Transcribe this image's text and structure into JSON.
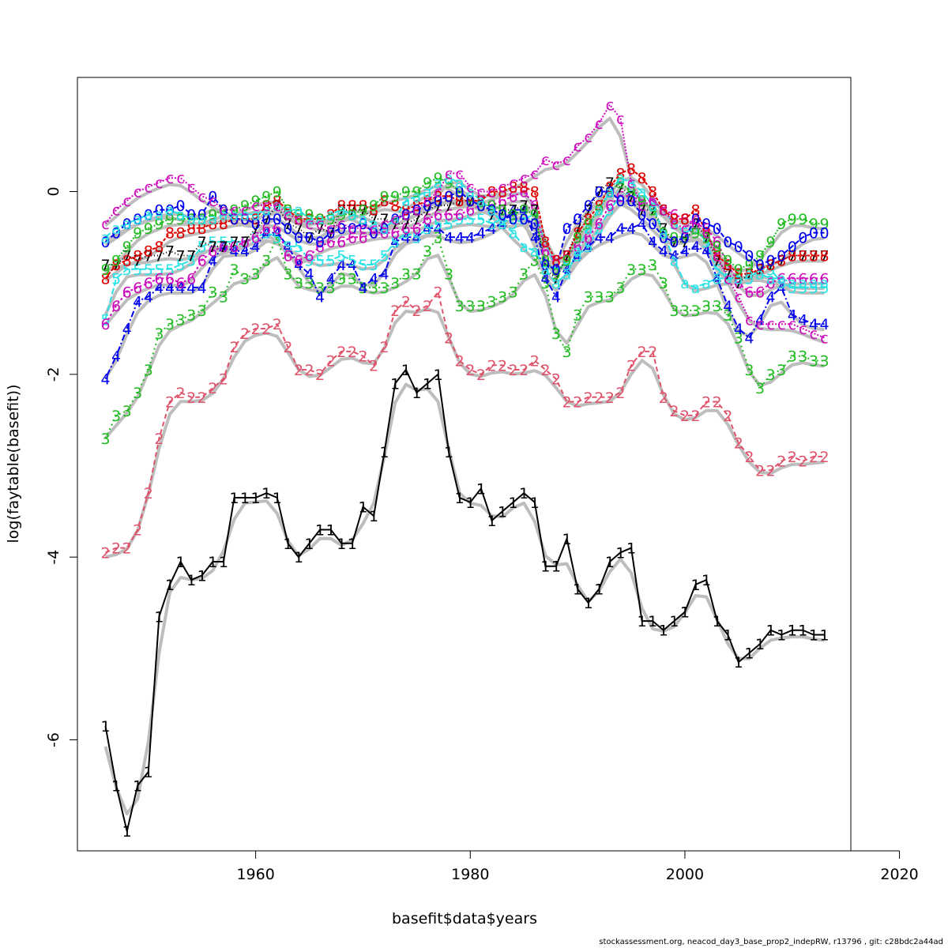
{
  "footer": "stockassessment.org, neacod_day3_base_prop2_indepRW, r13796 , git: c28bdc2a44ad",
  "chart_data": {
    "type": "line",
    "title": "",
    "xlabel": "basefit$data$years",
    "ylabel": "log(faytable(basefit))",
    "xlim": [
      1946,
      2020
    ],
    "ylim": [
      -7.15,
      1.25
    ],
    "xticks": [
      1960,
      1980,
      2000,
      2020
    ],
    "yticks": [
      -6,
      -4,
      -2,
      0
    ],
    "grid": false,
    "legend": "none",
    "series": [
      {
        "label": "1",
        "color": "#000000",
        "dash": "",
        "values": [
          -5.85,
          -6.5,
          -7.0,
          -6.5,
          -6.35,
          -4.65,
          -4.3,
          -4.05,
          -4.25,
          -4.2,
          -4.05,
          -4.05,
          -3.35,
          -3.35,
          -3.35,
          -3.3,
          -3.35,
          -3.85,
          -4.0,
          -3.85,
          -3.7,
          -3.7,
          -3.85,
          -3.85,
          -3.45,
          -3.55,
          -2.85,
          -2.1,
          -1.95,
          -2.2,
          -2.1,
          -2.0,
          -2.85,
          -3.35,
          -3.4,
          -3.25,
          -3.6,
          -3.5,
          -3.4,
          -3.3,
          -3.4,
          -4.1,
          -4.1,
          -3.8,
          -4.35,
          -4.5,
          -4.35,
          -4.05,
          -3.95,
          -3.9,
          -4.7,
          -4.7,
          -4.8,
          -4.7,
          -4.6,
          -4.3,
          -4.25,
          -4.7,
          -4.85,
          -5.15,
          -5.05,
          -4.95,
          -4.8,
          -4.85,
          -4.8,
          -4.8,
          -4.85,
          -4.85
        ]
      },
      {
        "label": "2",
        "color": "#df536b",
        "dash": "6,4",
        "values": [
          -3.95,
          -3.9,
          -3.9,
          -3.7,
          -3.3,
          -2.7,
          -2.3,
          -2.2,
          -2.25,
          -2.25,
          -2.15,
          -2.05,
          -1.7,
          -1.55,
          -1.5,
          -1.5,
          -1.45,
          -1.7,
          -1.95,
          -1.95,
          -2.0,
          -1.85,
          -1.75,
          -1.75,
          -1.8,
          -1.9,
          -1.7,
          -1.3,
          -1.2,
          -1.3,
          -1.25,
          -1.1,
          -1.6,
          -1.85,
          -1.95,
          -2.0,
          -1.9,
          -1.9,
          -1.95,
          -1.95,
          -1.85,
          -1.95,
          -2.05,
          -2.3,
          -2.3,
          -2.25,
          -2.25,
          -2.25,
          -2.2,
          -1.9,
          -1.75,
          -1.75,
          -2.25,
          -2.4,
          -2.45,
          -2.45,
          -2.3,
          -2.3,
          -2.45,
          -2.75,
          -2.9,
          -3.05,
          -3.05,
          -2.95,
          -2.9,
          -2.95,
          -2.9,
          -2.9
        ]
      },
      {
        "label": "3",
        "color": "#22bb22",
        "dash": "2,4",
        "values": [
          -2.7,
          -2.45,
          -2.4,
          -2.2,
          -1.95,
          -1.55,
          -1.45,
          -1.4,
          -1.35,
          -1.3,
          -1.1,
          -1.15,
          -0.85,
          -0.95,
          -0.9,
          -0.75,
          -0.5,
          -0.9,
          -1.0,
          -1.0,
          -1.05,
          -1.05,
          -0.95,
          -0.95,
          -1.05,
          -1.05,
          -1.05,
          -1.0,
          -0.9,
          -0.9,
          -0.65,
          -0.5,
          -0.9,
          -1.25,
          -1.25,
          -1.25,
          -1.2,
          -1.15,
          -1.1,
          -0.9,
          -0.75,
          -1.0,
          -1.55,
          -1.75,
          -1.35,
          -1.15,
          -1.15,
          -1.15,
          -1.05,
          -0.85,
          -0.85,
          -0.8,
          -1.0,
          -1.3,
          -1.3,
          -1.3,
          -1.25,
          -1.25,
          -1.35,
          -1.6,
          -1.95,
          -2.15,
          -2.0,
          -1.95,
          -1.8,
          -1.8,
          -1.85,
          -1.85
        ]
      },
      {
        "label": "4",
        "color": "#0000ee",
        "dash": "2,3,8,3",
        "values": [
          -2.05,
          -1.8,
          -1.5,
          -1.2,
          -1.15,
          -1.05,
          -1.05,
          -1.05,
          -1.05,
          -1.05,
          -0.75,
          -0.6,
          -0.65,
          -0.65,
          -0.6,
          -0.45,
          -0.45,
          -0.6,
          -0.8,
          -0.9,
          -1.15,
          -0.95,
          -0.8,
          -0.8,
          -1.05,
          -0.95,
          -0.9,
          -0.55,
          -0.5,
          -0.5,
          -0.4,
          -0.4,
          -0.5,
          -0.5,
          -0.5,
          -0.45,
          -0.4,
          -0.35,
          -0.2,
          -0.2,
          -0.5,
          -0.95,
          -1.15,
          -0.85,
          -0.7,
          -0.6,
          -0.5,
          -0.5,
          -0.4,
          -0.4,
          -0.35,
          -0.55,
          -0.65,
          -0.7,
          -0.65,
          -0.6,
          -0.65,
          -0.95,
          -1.25,
          -1.5,
          -1.6,
          -1.4,
          -1.15,
          -1.05,
          -1.35,
          -1.4,
          -1.45,
          -1.45
        ]
      },
      {
        "label": "5",
        "color": "#28e2e5",
        "dash": "8,3",
        "values": [
          -1.4,
          -0.95,
          -0.85,
          -0.85,
          -0.85,
          -0.85,
          -0.85,
          -0.8,
          -0.75,
          -0.6,
          -0.55,
          -0.55,
          -0.55,
          -0.55,
          -0.5,
          -0.45,
          -0.5,
          -0.6,
          -0.6,
          -0.75,
          -0.75,
          -0.75,
          -0.7,
          -0.75,
          -0.8,
          -0.8,
          -0.7,
          -0.55,
          -0.45,
          -0.5,
          -0.4,
          -0.35,
          -0.35,
          -0.3,
          -0.3,
          -0.3,
          -0.35,
          -0.3,
          -0.35,
          -0.3,
          -0.25,
          -0.55,
          -0.85,
          -0.8,
          -0.7,
          -0.6,
          -0.4,
          -0.2,
          -0.05,
          0.0,
          -0.1,
          -0.1,
          -0.2,
          -0.35,
          -0.45,
          -0.4,
          -0.55,
          -0.85,
          -0.95,
          -0.95,
          -0.95,
          -0.85,
          -0.85,
          -1.0,
          -1.05,
          -1.05,
          -1.05,
          -1.05
        ]
      },
      {
        "label": "6",
        "color": "#cd0bbc",
        "dash": "3,3",
        "values": [
          -1.45,
          -1.25,
          -1.1,
          -1.05,
          -1.0,
          -0.95,
          -0.95,
          -1.0,
          -0.95,
          -0.75,
          -0.65,
          -0.6,
          -0.6,
          -0.55,
          -0.5,
          -0.4,
          -0.4,
          -0.7,
          -0.75,
          -0.7,
          -0.6,
          -0.55,
          -0.55,
          -0.5,
          -0.5,
          -0.45,
          -0.45,
          -0.45,
          -0.4,
          -0.4,
          -0.3,
          -0.25,
          -0.25,
          -0.25,
          -0.2,
          -0.15,
          -0.15,
          -0.1,
          -0.05,
          0.0,
          -0.15,
          -0.65,
          -0.75,
          -0.7,
          -0.6,
          -0.5,
          -0.35,
          -0.15,
          -0.05,
          -0.05,
          -0.1,
          -0.1,
          -0.2,
          -0.25,
          -0.3,
          -0.35,
          -0.4,
          -0.55,
          -0.8,
          -1.0,
          -1.1,
          -1.1,
          -1.0,
          -0.95,
          -0.95,
          -0.95,
          -0.95,
          -0.95
        ]
      },
      {
        "label": "7",
        "color": "#000000",
        "dash": "1,3",
        "values": [
          -0.8,
          -0.8,
          -0.7,
          -0.75,
          -0.7,
          -0.7,
          -0.65,
          -0.7,
          -0.7,
          -0.55,
          -0.6,
          -0.6,
          -0.55,
          -0.55,
          -0.4,
          -0.3,
          -0.15,
          -0.35,
          -0.4,
          -0.5,
          -0.4,
          -0.45,
          -0.2,
          -0.2,
          -0.2,
          -0.3,
          -0.3,
          -0.35,
          -0.35,
          -0.3,
          -0.2,
          -0.15,
          -0.15,
          -0.1,
          -0.1,
          -0.1,
          -0.25,
          -0.2,
          -0.2,
          -0.15,
          -0.2,
          -0.85,
          -0.95,
          -0.7,
          -0.4,
          -0.2,
          0.0,
          0.1,
          0.05,
          -0.05,
          -0.2,
          -0.2,
          -0.4,
          -0.55,
          -0.55,
          -0.35,
          -0.5,
          -0.75,
          -0.9,
          -1.0,
          -0.9,
          -0.85,
          -0.8,
          -0.75,
          -0.7,
          -0.7,
          -0.7,
          -0.7
        ]
      },
      {
        "label": "8",
        "color": "#dd0000",
        "dash": "4,2",
        "values": [
          -0.95,
          -0.8,
          -0.75,
          -0.7,
          -0.65,
          -0.6,
          -0.45,
          -0.45,
          -0.4,
          -0.4,
          -0.35,
          -0.35,
          -0.3,
          -0.3,
          -0.3,
          -0.15,
          -0.1,
          -0.2,
          -0.3,
          -0.3,
          -0.3,
          -0.25,
          -0.15,
          -0.15,
          -0.15,
          -0.2,
          -0.1,
          -0.15,
          -0.2,
          -0.15,
          -0.1,
          -0.05,
          -0.05,
          -0.1,
          -0.1,
          -0.1,
          0.0,
          0.0,
          0.05,
          0.05,
          0.0,
          -0.55,
          -0.75,
          -0.7,
          -0.45,
          -0.3,
          -0.15,
          0.05,
          0.2,
          0.25,
          0.15,
          0.0,
          -0.2,
          -0.3,
          -0.3,
          -0.2,
          -0.45,
          -0.7,
          -0.8,
          -0.9,
          -0.9,
          -0.85,
          -0.8,
          -0.75,
          -0.7,
          -0.7,
          -0.7,
          -0.7
        ]
      },
      {
        "label": "9",
        "color": "#22bb22",
        "dash": "2,2",
        "values": [
          -0.85,
          -0.75,
          -0.6,
          -0.45,
          -0.4,
          -0.35,
          -0.3,
          -0.3,
          -0.3,
          -0.3,
          -0.25,
          -0.2,
          -0.2,
          -0.15,
          -0.1,
          -0.05,
          0.0,
          -0.2,
          -0.25,
          -0.25,
          -0.3,
          -0.3,
          -0.25,
          -0.25,
          -0.2,
          -0.15,
          -0.05,
          -0.05,
          0.0,
          0.0,
          0.1,
          0.15,
          0.1,
          0.0,
          -0.1,
          -0.15,
          -0.15,
          -0.2,
          -0.25,
          -0.2,
          -0.25,
          -0.75,
          -0.9,
          -0.75,
          -0.5,
          -0.35,
          -0.2,
          0.0,
          0.1,
          0.0,
          -0.1,
          -0.2,
          -0.45,
          -0.5,
          -0.5,
          -0.45,
          -0.5,
          -0.6,
          -0.75,
          -0.85,
          -0.8,
          -0.7,
          -0.55,
          -0.35,
          -0.3,
          -0.3,
          -0.35,
          -0.35
        ]
      },
      {
        "label": "0",
        "color": "#0000ee",
        "dash": "6,3",
        "values": [
          -0.55,
          -0.45,
          -0.35,
          -0.3,
          -0.25,
          -0.2,
          -0.2,
          -0.15,
          -0.25,
          -0.25,
          -0.05,
          -0.2,
          -0.3,
          -0.3,
          -0.35,
          -0.3,
          -0.3,
          -0.4,
          -0.5,
          -0.5,
          -0.55,
          -0.45,
          -0.4,
          -0.4,
          -0.35,
          -0.45,
          -0.4,
          -0.3,
          -0.25,
          -0.2,
          -0.15,
          -0.1,
          -0.05,
          0.0,
          -0.1,
          -0.15,
          -0.2,
          -0.25,
          -0.3,
          -0.3,
          -0.35,
          -0.8,
          -0.85,
          -0.4,
          -0.3,
          -0.15,
          0.0,
          0.0,
          -0.1,
          -0.1,
          -0.25,
          -0.35,
          -0.5,
          -0.55,
          -0.5,
          -0.3,
          -0.35,
          -0.4,
          -0.55,
          -0.6,
          -0.7,
          -0.8,
          -0.75,
          -0.7,
          -0.6,
          -0.5,
          -0.45,
          -0.45
        ]
      },
      {
        "label": "a",
        "color": "#28e2e5",
        "dash": "8,4",
        "values": [
          -0.5,
          -0.4,
          -0.35,
          -0.3,
          -0.25,
          -0.25,
          -0.2,
          -0.25,
          -0.3,
          -0.3,
          -0.3,
          -0.25,
          -0.25,
          -0.25,
          -0.25,
          -0.2,
          -0.15,
          -0.2,
          -0.2,
          -0.3,
          -0.3,
          -0.25,
          -0.2,
          -0.25,
          -0.3,
          -0.35,
          -0.4,
          -0.3,
          -0.1,
          -0.05,
          0.0,
          0.1,
          0.15,
          0.1,
          0.0,
          -0.1,
          -0.2,
          -0.35,
          -0.45,
          -0.6,
          -0.65,
          -0.85,
          -1.0,
          -0.9,
          -0.65,
          -0.4,
          -0.2,
          0.0,
          0.15,
          0.1,
          0.0,
          -0.15,
          -0.45,
          -0.75,
          -1.0,
          -1.05,
          -1.0,
          -0.95,
          -0.95,
          -0.95,
          -0.9,
          -0.9,
          -0.95,
          -0.95,
          -1.0,
          -1.0,
          -1.0,
          -1.0
        ]
      },
      {
        "label": "c",
        "color": "#cd0bbc",
        "dash": "2,2",
        "values": [
          -0.35,
          -0.2,
          -0.1,
          0.0,
          0.05,
          0.1,
          0.15,
          0.15,
          0.05,
          -0.05,
          -0.1,
          -0.2,
          -0.2,
          -0.2,
          -0.15,
          -0.15,
          -0.15,
          -0.25,
          -0.3,
          -0.35,
          -0.35,
          -0.4,
          -0.35,
          -0.4,
          -0.4,
          -0.4,
          -0.35,
          -0.3,
          -0.25,
          -0.2,
          -0.1,
          0.0,
          0.2,
          0.2,
          0.05,
          0.0,
          0.0,
          0.05,
          0.1,
          0.15,
          0.2,
          0.35,
          0.3,
          0.35,
          0.5,
          0.6,
          0.75,
          0.95,
          0.8,
          0.1,
          -0.15,
          -0.1,
          -0.2,
          -0.35,
          -0.4,
          -0.3,
          -0.45,
          -0.7,
          -0.95,
          -1.15,
          -1.4,
          -1.45,
          -1.45,
          -1.45,
          -1.45,
          -1.5,
          -1.55,
          -1.6
        ]
      }
    ]
  }
}
